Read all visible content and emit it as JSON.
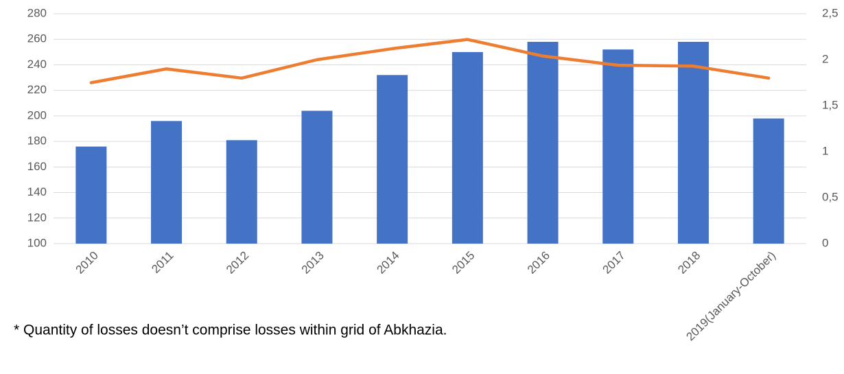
{
  "chart_data": {
    "type": "bar-line",
    "categories": [
      "2010",
      "2011",
      "2012",
      "2013",
      "2014",
      "2015",
      "2016",
      "2017",
      "2018",
      "2019(January-October)"
    ],
    "series": [
      {
        "type": "bar",
        "color": "#4472c4",
        "values": [
          176,
          196,
          181,
          204,
          232,
          250,
          258,
          252,
          258,
          198
        ]
      },
      {
        "type": "line",
        "color": "#ed7d31",
        "axis": "y2",
        "values": [
          1.75,
          1.9,
          1.8,
          2.0,
          2.12,
          2.22,
          2.04,
          1.94,
          1.93,
          1.8
        ]
      }
    ],
    "ylim": [
      100,
      280
    ],
    "yticks": [
      100,
      120,
      140,
      160,
      180,
      200,
      220,
      240,
      260,
      280
    ],
    "y2lim": [
      0,
      2.5
    ],
    "y2ticks": [
      0,
      {
        "value": 0.5,
        "label": "0,5"
      },
      1,
      {
        "value": 1.5,
        "label": "1,5"
      },
      2,
      {
        "value": 2.5,
        "label": "2,5"
      }
    ],
    "grid": true,
    "annotation": "* Quantity of losses doesn’t comprise losses within grid of Abkhazia."
  }
}
